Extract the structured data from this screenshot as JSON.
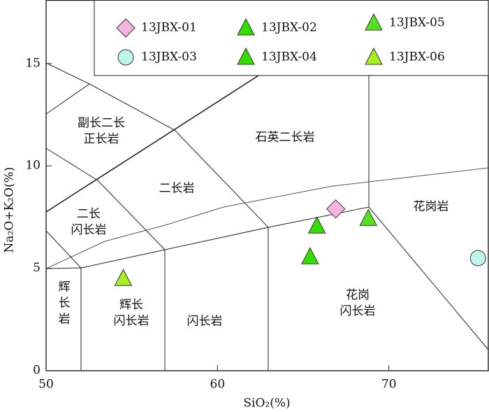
{
  "chart_data": {
    "type": "scatter",
    "xlabel": "SiO₂(%)",
    "ylabel": "Na₂O+K₂O(%)",
    "xlim": [
      50,
      75.8
    ],
    "ylim": [
      0,
      18.1
    ],
    "xticks": [
      50,
      60,
      70
    ],
    "yticks": [
      0,
      5,
      10,
      15
    ],
    "series": [
      {
        "name": "13JBX-01",
        "color": "#f5b5e0",
        "marker": "diamond",
        "x": [
          66.9
        ],
        "values": [
          7.9
        ]
      },
      {
        "name": "13JBX-02",
        "color": "#33dd00",
        "marker": "triangle",
        "x": [
          65.8
        ],
        "values": [
          7.06
        ]
      },
      {
        "name": "13JBX-05",
        "color": "#55e022",
        "marker": "triangle",
        "x": [
          68.8
        ],
        "values": [
          7.43
        ]
      },
      {
        "name": "13JBX-03",
        "color": "#bdf5ea",
        "marker": "circle",
        "x": [
          75.2
        ],
        "values": [
          5.5
        ]
      },
      {
        "name": "13JBX-04",
        "color": "#33dd00",
        "marker": "triangle",
        "x": [
          65.4
        ],
        "values": [
          5.56
        ]
      },
      {
        "name": "13JBX-06",
        "color": "#aaee22",
        "marker": "triangle",
        "x": [
          54.5
        ],
        "values": [
          4.5
        ]
      }
    ],
    "field_labels": [
      [
        "副长二长",
        "正长岩"
      ],
      [
        "石英二长岩"
      ],
      [
        "二长岩"
      ],
      [
        "二长",
        "闪长岩"
      ],
      [
        "花岗岩"
      ],
      [
        "辉",
        "长",
        "岩"
      ],
      [
        "辉长",
        "闪长岩"
      ],
      [
        "闪长岩"
      ],
      [
        "花岗",
        "闪长岩"
      ]
    ]
  }
}
